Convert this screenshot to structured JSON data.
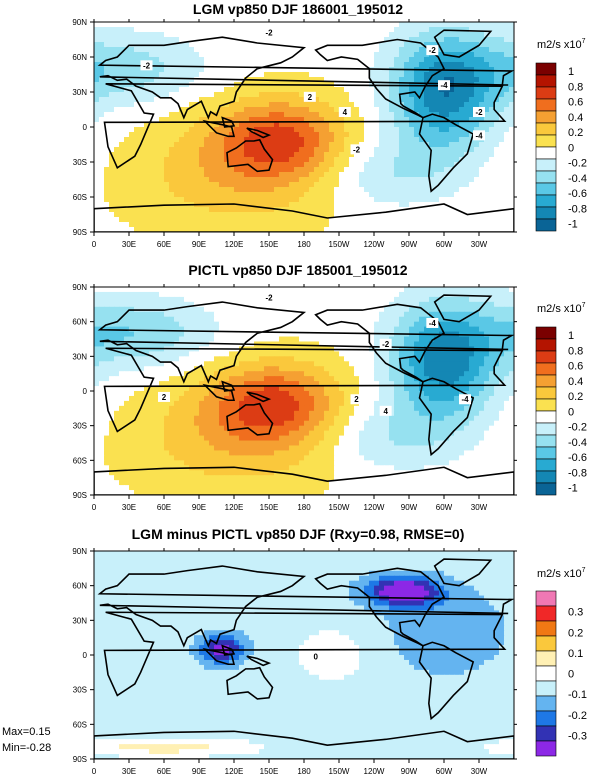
{
  "figure": {
    "stats": {
      "max_label": "Max=0.15",
      "min_label": "Min=-0.28"
    }
  },
  "chart_data": [
    {
      "type": "heatmap",
      "title": "LGM vp850 DJF 186001_195012",
      "unit_label": "m2/s x10",
      "unit_exponent": "7",
      "x_ticks": [
        "0",
        "30E",
        "60E",
        "90E",
        "120E",
        "150E",
        "180",
        "150W",
        "120W",
        "90W",
        "60W",
        "30W"
      ],
      "y_ticks": [
        "90N",
        "60N",
        "30N",
        "0",
        "30S",
        "60S",
        "90S"
      ],
      "colorbar_labels": [
        "1",
        "0.8",
        "0.6",
        "0.4",
        "0.2",
        "0",
        "-0.2",
        "-0.4",
        "-0.6",
        "-0.8",
        "-1"
      ],
      "colorbar_colors": [
        "#7a0000",
        "#b41400",
        "#dc3c14",
        "#f06e1e",
        "#f5a032",
        "#fac83c",
        "#fae150",
        "#ffffff",
        "#c8f0fa",
        "#96e1f0",
        "#5ac8e6",
        "#28aad2",
        "#1487b4",
        "#0a6496"
      ],
      "contour_labels": [
        "-2",
        "-2",
        "2",
        "4",
        "-2",
        "-4",
        "-2",
        "-4",
        "-2"
      ],
      "centers": [
        {
          "lon": 160,
          "lat": -10,
          "value": 0.6,
          "spread_lon": 55,
          "spread_lat": 35
        },
        {
          "lon": 120,
          "lat": -40,
          "value": 0.3,
          "spread_lon": 90,
          "spread_lat": 50
        },
        {
          "lon": 300,
          "lat": 30,
          "value": -0.8,
          "spread_lon": 45,
          "spread_lat": 50
        },
        {
          "lon": 20,
          "lat": 50,
          "value": -0.35,
          "spread_lon": 70,
          "spread_lat": 30
        },
        {
          "lon": 250,
          "lat": -40,
          "value": -0.25,
          "spread_lon": 60,
          "spread_lat": 30
        }
      ]
    },
    {
      "type": "heatmap",
      "title": "PICTL vp850 DJF 185001_195012",
      "unit_label": "m2/s x10",
      "unit_exponent": "7",
      "x_ticks": [
        "0",
        "30E",
        "60E",
        "90E",
        "120E",
        "150E",
        "180",
        "150W",
        "120W",
        "90W",
        "60W",
        "30W"
      ],
      "y_ticks": [
        "90N",
        "60N",
        "30N",
        "0",
        "30S",
        "60S",
        "90S"
      ],
      "colorbar_labels": [
        "1",
        "0.8",
        "0.6",
        "0.4",
        "0.2",
        "0",
        "-0.2",
        "-0.4",
        "-0.6",
        "-0.8",
        "-1"
      ],
      "colorbar_colors": [
        "#7a0000",
        "#b41400",
        "#dc3c14",
        "#f06e1e",
        "#f5a032",
        "#fac83c",
        "#fae150",
        "#ffffff",
        "#c8f0fa",
        "#96e1f0",
        "#5ac8e6",
        "#28aad2",
        "#1487b4",
        "#0a6496"
      ],
      "contour_labels": [
        "-2",
        "2",
        "4",
        "2",
        "-2",
        "-4",
        "-4"
      ],
      "centers": [
        {
          "lon": 155,
          "lat": -10,
          "value": 0.6,
          "spread_lon": 55,
          "spread_lat": 35
        },
        {
          "lon": 120,
          "lat": -40,
          "value": 0.3,
          "spread_lon": 90,
          "spread_lat": 50
        },
        {
          "lon": 300,
          "lat": 25,
          "value": -0.8,
          "spread_lon": 45,
          "spread_lat": 50
        },
        {
          "lon": 30,
          "lat": 50,
          "value": -0.4,
          "spread_lon": 70,
          "spread_lat": 30
        },
        {
          "lon": 250,
          "lat": -40,
          "value": -0.25,
          "spread_lon": 60,
          "spread_lat": 30
        }
      ]
    },
    {
      "type": "heatmap",
      "title": "LGM minus PICTL vp850 DJF (Rxy=0.98, RMSE=0)",
      "unit_label": "m2/s x10",
      "unit_exponent": "7",
      "x_ticks": [
        "0",
        "30E",
        "60E",
        "90E",
        "120E",
        "150E",
        "180",
        "150W",
        "120W",
        "90W",
        "60W",
        "30W"
      ],
      "y_ticks": [
        "90N",
        "60N",
        "30N",
        "0",
        "30S",
        "60S",
        "90S"
      ],
      "colorbar_labels": [
        "0.3",
        "0.2",
        "0.1",
        "0",
        "-0.1",
        "-0.2",
        "-0.3"
      ],
      "colorbar_colors": [
        "#f078b4",
        "#f02828",
        "#f07814",
        "#fac83c",
        "#fff0b4",
        "#ffffff",
        "#c8f0fa",
        "#64b4f0",
        "#1e78e6",
        "#3232b4",
        "#8c28e6"
      ],
      "contour_labels": [
        "0"
      ],
      "centers": [
        {
          "lon": 110,
          "lat": 5,
          "value": -0.2,
          "spread_lon": 18,
          "spread_lat": 12
        },
        {
          "lon": 265,
          "lat": 55,
          "value": -0.25,
          "spread_lon": 30,
          "spread_lat": 12
        },
        {
          "lon": 205,
          "lat": 0,
          "value": 0.05,
          "spread_lon": 40,
          "spread_lat": 30
        },
        {
          "lon": 60,
          "lat": -80,
          "value": 0.1,
          "spread_lon": 80,
          "spread_lat": 8
        },
        {
          "lon": 300,
          "lat": 20,
          "value": -0.06,
          "spread_lon": 50,
          "spread_lat": 35
        }
      ]
    }
  ]
}
